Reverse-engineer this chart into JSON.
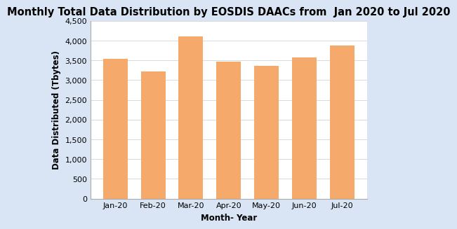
{
  "title": "Monthly Total Data Distribution by EOSDIS DAACs from  Jan 2020 to Jul 2020",
  "xlabel": "Month- Year",
  "ylabel": "Data Distributed (Tbytes)",
  "categories": [
    "Jan-20",
    "Feb-20",
    "Mar-20",
    "Apr-20",
    "May-20",
    "Jun-20",
    "Jul-20"
  ],
  "values": [
    3530,
    3220,
    4110,
    3460,
    3370,
    3570,
    3880
  ],
  "bar_color": "#F5A96A",
  "bar_edge_color": "#F5A96A",
  "ylim": [
    0,
    4500
  ],
  "yticks": [
    0,
    500,
    1000,
    1500,
    2000,
    2500,
    3000,
    3500,
    4000,
    4500
  ],
  "background_color": "#D9E5F5",
  "plot_bg_color": "#FFFFFF",
  "title_fontsize": 10.5,
  "axis_label_fontsize": 8.5,
  "tick_fontsize": 8,
  "grid_color": "#CCCCCC",
  "spine_color": "#AAAAAA"
}
